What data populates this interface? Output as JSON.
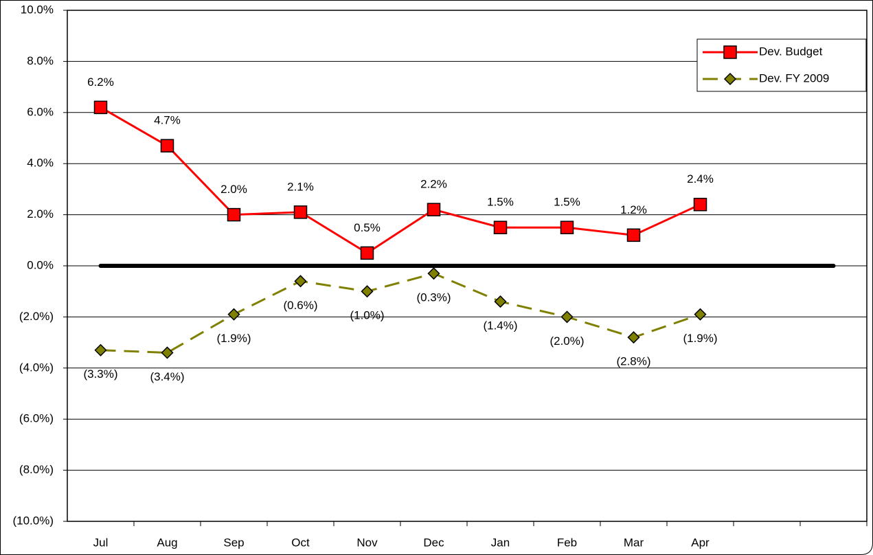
{
  "chart_data": {
    "type": "line",
    "categories": [
      "Jul",
      "Aug",
      "Sep",
      "Oct",
      "Nov",
      "Dec",
      "Jan",
      "Feb",
      "Mar",
      "Apr",
      null,
      null
    ],
    "series": [
      {
        "name": "Dev. Budget",
        "color": "#ff0000",
        "marker": "square",
        "values": [
          6.2,
          4.7,
          2.0,
          2.1,
          0.5,
          2.2,
          1.5,
          1.5,
          1.2,
          2.4,
          null,
          null
        ],
        "value_labels": [
          "6.2%",
          "4.7%",
          "2.0%",
          "2.1%",
          "0.5%",
          "2.2%",
          "1.5%",
          "1.5%",
          "1.2%",
          "2.4%",
          null,
          null
        ]
      },
      {
        "name": "Dev. FY 2009",
        "color": "#808000",
        "marker": "diamond",
        "dashed": true,
        "values": [
          -3.3,
          -3.4,
          -1.9,
          -0.6,
          -1.0,
          -0.3,
          -1.4,
          -2.0,
          -2.8,
          -1.9,
          null,
          null
        ],
        "value_labels": [
          "(3.3%)",
          "(3.4%)",
          "(1.9%)",
          "(0.6%)",
          "(1.0%)",
          "(0.3%)",
          "(1.4%)",
          "(2.0%)",
          "(2.8%)",
          "(1.9%)",
          null,
          null
        ]
      },
      {
        "color": "#000000",
        "values": [
          0,
          0,
          0,
          0,
          0,
          0,
          0,
          0,
          0,
          0,
          0,
          0
        ]
      }
    ],
    "ylim": [
      -10,
      10
    ],
    "yticks": [
      {
        "value": -10,
        "label": "(10.0%)"
      },
      {
        "value": -8,
        "label": "(8.0%)"
      },
      {
        "value": -6,
        "label": "(6.0%)"
      },
      {
        "value": -4,
        "label": "(4.0%)"
      },
      {
        "value": -2,
        "label": "(2.0%)"
      },
      {
        "value": 0,
        "label": "0.0%"
      },
      {
        "value": 2,
        "label": "2.0%"
      },
      {
        "value": 4,
        "label": "4.0%"
      },
      {
        "value": 6,
        "label": "6.0%"
      },
      {
        "value": 8,
        "label": "8.0%"
      },
      {
        "value": 10,
        "label": "10.0%"
      }
    ],
    "grid": true,
    "legend": "top-right"
  }
}
